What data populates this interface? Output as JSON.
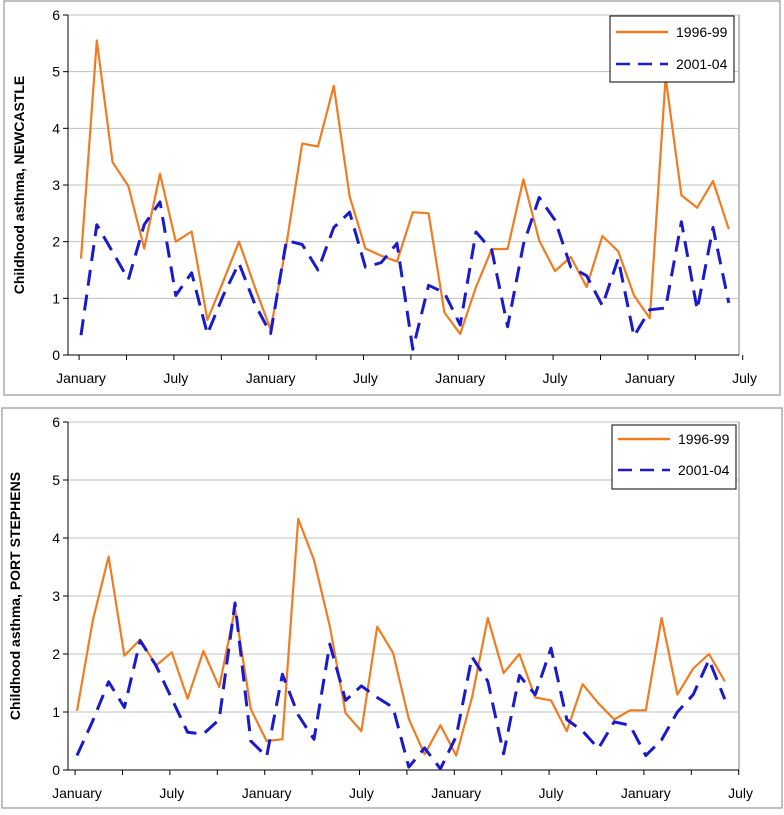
{
  "chart_data": [
    {
      "type": "line",
      "ylabel": "Childhood asthma, NEWCASTLE",
      "ylim": [
        0,
        6
      ],
      "yticks": [
        "0",
        "1",
        "2",
        "3",
        "4",
        "5",
        "6"
      ],
      "xticks": [
        {
          "label": "January",
          "index": 0
        },
        {
          "label": "July",
          "index": 6
        },
        {
          "label": "January",
          "index": 12
        },
        {
          "label": "July",
          "index": 18
        },
        {
          "label": "January",
          "index": 24
        },
        {
          "label": "July",
          "index": 30
        },
        {
          "label": "January",
          "index": 36
        },
        {
          "label": "July",
          "index": 42
        }
      ],
      "grid": true,
      "legend_position": "top-right",
      "series": [
        {
          "name": "1996-99",
          "color": "#f07c22",
          "style": "solid",
          "values": [
            1.7,
            5.55,
            3.4,
            2.98,
            1.88,
            3.2,
            2.0,
            2.18,
            0.62,
            1.3,
            2.0,
            1.2,
            0.45,
            1.95,
            3.73,
            3.68,
            4.75,
            2.8,
            1.88,
            1.75,
            1.65,
            2.52,
            2.5,
            0.75,
            0.37,
            1.2,
            1.87,
            1.87,
            3.1,
            2.02,
            1.48,
            1.73,
            1.2,
            2.1,
            1.83,
            1.05,
            0.65,
            4.9,
            2.82,
            2.6,
            3.07,
            2.22
          ]
        },
        {
          "name": "2001-04",
          "color": "#1a1acc",
          "style": "dashed",
          "values": [
            0.35,
            2.3,
            1.82,
            1.33,
            2.3,
            2.7,
            1.05,
            1.45,
            0.37,
            1.05,
            1.62,
            0.9,
            0.38,
            2.02,
            1.95,
            1.5,
            2.25,
            2.52,
            1.55,
            1.63,
            1.97,
            0.1,
            1.23,
            1.1,
            0.53,
            2.17,
            1.85,
            0.5,
            1.95,
            2.78,
            2.38,
            1.55,
            1.4,
            0.87,
            1.7,
            0.33,
            0.8,
            0.83,
            2.35,
            0.8,
            2.25,
            0.92
          ]
        }
      ]
    },
    {
      "type": "line",
      "ylabel": "Childhood asthma, PORT STEPHENS",
      "ylim": [
        0,
        6
      ],
      "yticks": [
        "0",
        "1",
        "2",
        "3",
        "4",
        "5",
        "6"
      ],
      "xticks": [
        {
          "label": "January",
          "index": 0
        },
        {
          "label": "July",
          "index": 6
        },
        {
          "label": "January",
          "index": 12
        },
        {
          "label": "July",
          "index": 18
        },
        {
          "label": "January",
          "index": 24
        },
        {
          "label": "July",
          "index": 30
        },
        {
          "label": "January",
          "index": 36
        },
        {
          "label": "July",
          "index": 42
        }
      ],
      "grid": true,
      "legend_position": "top-right",
      "series": [
        {
          "name": "1996-99",
          "color": "#f07c22",
          "style": "solid",
          "values": [
            1.02,
            2.58,
            3.68,
            1.97,
            2.25,
            1.8,
            2.03,
            1.23,
            2.05,
            1.43,
            2.78,
            1.05,
            0.5,
            0.53,
            4.33,
            3.62,
            2.48,
            0.98,
            0.67,
            2.47,
            2.02,
            0.88,
            0.27,
            0.77,
            0.25,
            1.25,
            2.62,
            1.67,
            2.0,
            1.25,
            1.2,
            0.67,
            1.48,
            1.15,
            0.87,
            1.03,
            1.03,
            2.62,
            1.3,
            1.75,
            2.0,
            1.53
          ]
        },
        {
          "name": "2001-04",
          "color": "#1a1acc",
          "style": "dashed",
          "values": [
            0.25,
            0.85,
            1.52,
            1.08,
            2.23,
            1.8,
            1.23,
            0.65,
            0.62,
            0.87,
            2.88,
            0.5,
            0.23,
            1.65,
            0.95,
            0.53,
            2.17,
            1.2,
            1.45,
            1.25,
            1.08,
            0.05,
            0.38,
            0.02,
            0.58,
            1.95,
            1.53,
            0.28,
            1.63,
            1.3,
            2.1,
            0.87,
            0.67,
            0.37,
            0.83,
            0.77,
            0.25,
            0.52,
            1.0,
            1.3,
            1.9,
            1.22
          ]
        }
      ]
    }
  ]
}
